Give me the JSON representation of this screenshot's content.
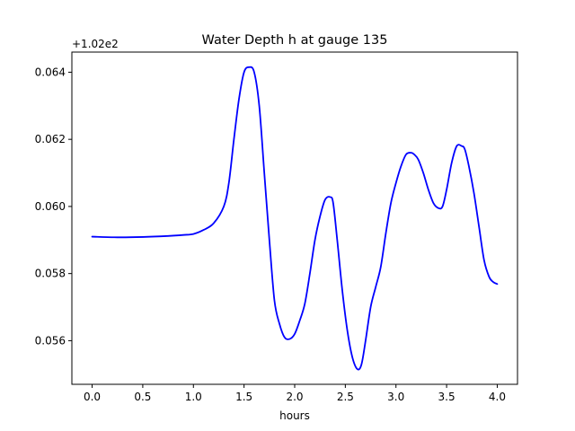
{
  "chart_data": {
    "type": "line",
    "title": "Water Depth h at gauge 135",
    "xlabel": "hours",
    "ylabel": "",
    "y_offset_label": "+1.02e2",
    "xlim": [
      -0.2,
      4.2
    ],
    "ylim": [
      0.0547,
      0.0646
    ],
    "x_ticks": [
      0.0,
      0.5,
      1.0,
      1.5,
      2.0,
      2.5,
      3.0,
      3.5,
      4.0
    ],
    "x_tick_labels": [
      "0.0",
      "0.5",
      "1.0",
      "1.5",
      "2.0",
      "2.5",
      "3.0",
      "3.5",
      "4.0"
    ],
    "y_ticks": [
      0.056,
      0.058,
      0.06,
      0.062,
      0.064
    ],
    "y_tick_labels": [
      "0.056",
      "0.058",
      "0.060",
      "0.062",
      "0.064"
    ],
    "grid": false,
    "series": [
      {
        "color": "#0000ff",
        "x": [
          0.0,
          0.25,
          0.5,
          0.75,
          0.9,
          1.0,
          1.1,
          1.2,
          1.3,
          1.35,
          1.4,
          1.45,
          1.5,
          1.55,
          1.6,
          1.65,
          1.7,
          1.75,
          1.8,
          1.85,
          1.9,
          1.95,
          2.0,
          2.05,
          2.1,
          2.15,
          2.2,
          2.25,
          2.3,
          2.35,
          2.38,
          2.42,
          2.47,
          2.52,
          2.57,
          2.62,
          2.66,
          2.7,
          2.75,
          2.8,
          2.85,
          2.9,
          2.95,
          3.0,
          3.05,
          3.1,
          3.15,
          3.18,
          3.22,
          3.27,
          3.32,
          3.37,
          3.42,
          3.46,
          3.5,
          3.55,
          3.6,
          3.65,
          3.68,
          3.72,
          3.77,
          3.82,
          3.87,
          3.92,
          3.96,
          4.0
        ],
        "y": [
          0.0591,
          0.05908,
          0.05909,
          0.05912,
          0.05915,
          0.05918,
          0.0593,
          0.0595,
          0.06,
          0.0607,
          0.062,
          0.0632,
          0.064,
          0.06415,
          0.064,
          0.063,
          0.061,
          0.059,
          0.0572,
          0.0565,
          0.0561,
          0.05605,
          0.0562,
          0.0566,
          0.0571,
          0.058,
          0.059,
          0.0597,
          0.0602,
          0.06028,
          0.0601,
          0.059,
          0.0575,
          0.0563,
          0.0555,
          0.05515,
          0.0553,
          0.056,
          0.057,
          0.0576,
          0.0582,
          0.0592,
          0.0601,
          0.0607,
          0.0612,
          0.06155,
          0.0616,
          0.06155,
          0.0614,
          0.061,
          0.0605,
          0.0601,
          0.05995,
          0.06,
          0.0605,
          0.0613,
          0.0618,
          0.0618,
          0.0617,
          0.0612,
          0.0604,
          0.0594,
          0.0584,
          0.0579,
          0.05775,
          0.05769
        ]
      }
    ]
  }
}
